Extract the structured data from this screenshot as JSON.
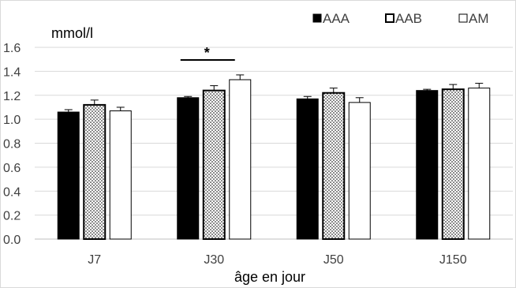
{
  "chart_data": {
    "type": "bar",
    "unit_label": "mmol/l",
    "xlabel": "âge en jour",
    "ylabel": "",
    "ylim": [
      0,
      1.6
    ],
    "yticks": [
      "0.0",
      "0.2",
      "0.4",
      "0.6",
      "0.8",
      "1.0",
      "1.2",
      "1.4",
      "1.6"
    ],
    "categories": [
      "J7",
      "J30",
      "J50",
      "J150"
    ],
    "series": [
      {
        "name": "AAA",
        "values": [
          1.06,
          1.18,
          1.17,
          1.24
        ],
        "errors": [
          0.02,
          0.01,
          0.02,
          0.01
        ],
        "fill": "#000000",
        "pattern": "solid"
      },
      {
        "name": "AAB",
        "values": [
          1.12,
          1.24,
          1.22,
          1.25
        ],
        "errors": [
          0.04,
          0.04,
          0.04,
          0.04
        ],
        "fill": "#ffffff",
        "pattern": "dotted"
      },
      {
        "name": "AM",
        "values": [
          1.07,
          1.33,
          1.14,
          1.26
        ],
        "errors": [
          0.03,
          0.04,
          0.04,
          0.04
        ],
        "fill": "#ffffff",
        "pattern": "empty"
      }
    ],
    "significance": {
      "label": "*",
      "category": "J30"
    },
    "legend_position": "top-right",
    "grid": "horizontal"
  }
}
